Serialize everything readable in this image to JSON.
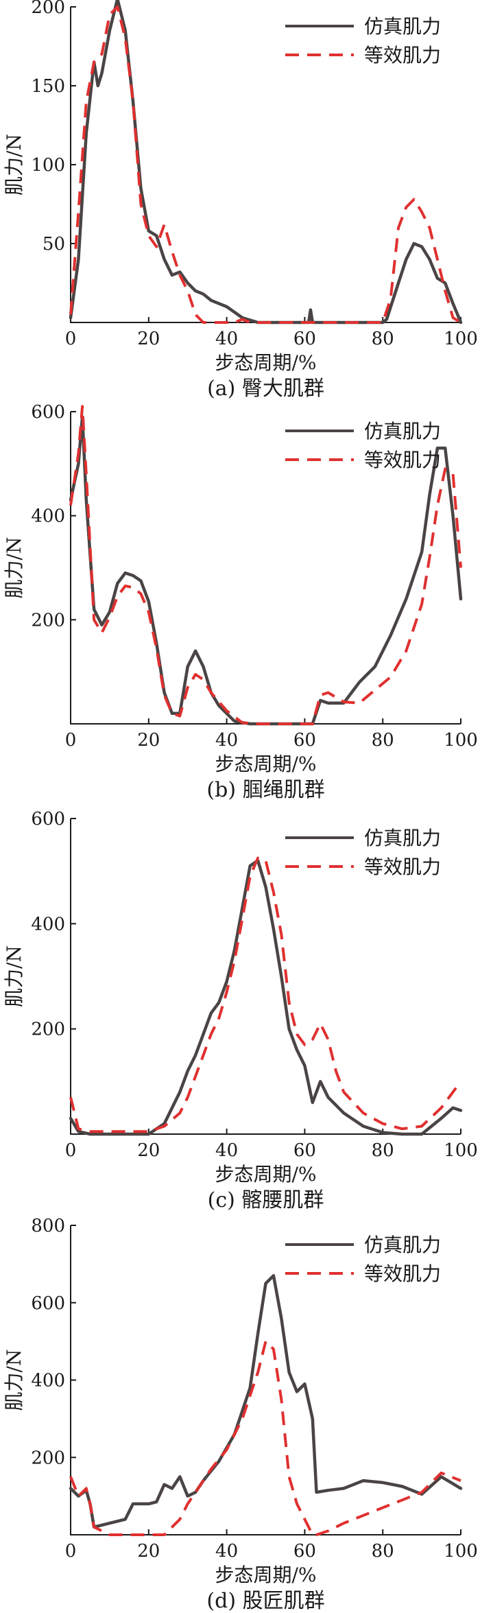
{
  "colors": {
    "sim": "#4a4444",
    "eq": "#e03030"
  },
  "chart_data": [
    {
      "type": "line",
      "caption": "(a)  臀大肌群",
      "xlabel": "步态周期/%",
      "ylabel": "肌力/N",
      "xlim": [
        0,
        100
      ],
      "ylim": [
        0,
        200
      ],
      "xticks": [
        "0",
        "20",
        "40",
        "60",
        "80",
        "100"
      ],
      "yticks": [
        50,
        100,
        150,
        200
      ],
      "ytick_labels": [
        "50",
        "100",
        "150",
        "200"
      ],
      "legend_position": "top-right",
      "series": [
        {
          "name": "仿真肌力",
          "style": "solid",
          "x": [
            0,
            2,
            4,
            6,
            7,
            8,
            10,
            12,
            14,
            16,
            18,
            20,
            22,
            24,
            26,
            28,
            30,
            32,
            34,
            36,
            40,
            44,
            48,
            60,
            61,
            61.5,
            62,
            64,
            80,
            81,
            84,
            86,
            88,
            90,
            92,
            94,
            96,
            98,
            100
          ],
          "y": [
            3,
            40,
            120,
            165,
            150,
            158,
            185,
            205,
            185,
            140,
            85,
            58,
            55,
            40,
            30,
            32,
            25,
            20,
            18,
            14,
            10,
            3,
            0,
            0,
            0,
            8,
            0,
            0,
            0,
            2,
            25,
            40,
            50,
            48,
            40,
            28,
            25,
            12,
            0
          ]
        },
        {
          "name": "等效肌力",
          "style": "dashed",
          "x": [
            0,
            2,
            4,
            6,
            8,
            10,
            12,
            14,
            16,
            18,
            20,
            22,
            24,
            26,
            28,
            30,
            32,
            34,
            38,
            42,
            44,
            46,
            50,
            60,
            70,
            80,
            82,
            84,
            86,
            88,
            90,
            92,
            94,
            96,
            98,
            100
          ],
          "y": [
            5,
            70,
            140,
            165,
            170,
            195,
            200,
            180,
            140,
            75,
            55,
            48,
            62,
            45,
            30,
            20,
            5,
            0,
            0,
            0,
            2,
            0,
            0,
            0,
            0,
            0,
            15,
            60,
            73,
            78,
            70,
            60,
            40,
            20,
            3,
            0
          ]
        }
      ]
    },
    {
      "type": "line",
      "caption": "(b)  腘绳肌群",
      "xlabel": "步态周期/%",
      "ylabel": "肌力/N",
      "xlim": [
        0,
        100
      ],
      "ylim": [
        0,
        600
      ],
      "xticks": [
        "0",
        "20",
        "40",
        "60",
        "80",
        "100"
      ],
      "yticks": [
        200,
        400,
        600
      ],
      "ytick_labels": [
        "200",
        "400",
        "600"
      ],
      "legend_position": "top-right",
      "series": [
        {
          "name": "仿真肌力",
          "style": "solid",
          "x": [
            0,
            2,
            3,
            4,
            6,
            8,
            10,
            12,
            14,
            16,
            18,
            20,
            22,
            24,
            26,
            28,
            30,
            32,
            34,
            36,
            38,
            42,
            46,
            50,
            54,
            58,
            62,
            64,
            66,
            70,
            74,
            78,
            82,
            86,
            90,
            92,
            94,
            96,
            98,
            100
          ],
          "y": [
            430,
            500,
            590,
            430,
            220,
            190,
            215,
            270,
            290,
            285,
            275,
            235,
            155,
            60,
            20,
            20,
            110,
            140,
            110,
            60,
            35,
            5,
            0,
            0,
            0,
            0,
            0,
            45,
            40,
            40,
            80,
            110,
            170,
            240,
            330,
            440,
            530,
            530,
            400,
            240
          ]
        },
        {
          "name": "等效肌力",
          "style": "dashed",
          "x": [
            0,
            2,
            3,
            4,
            6,
            8,
            10,
            12,
            14,
            16,
            18,
            20,
            22,
            24,
            26,
            28,
            30,
            32,
            34,
            36,
            40,
            44,
            48,
            54,
            58,
            62,
            64,
            66,
            70,
            74,
            78,
            82,
            86,
            90,
            92,
            94,
            96,
            98,
            100
          ],
          "y": [
            420,
            520,
            610,
            480,
            200,
            175,
            205,
            245,
            265,
            262,
            250,
            215,
            145,
            55,
            20,
            15,
            70,
            95,
            85,
            60,
            25,
            2,
            0,
            0,
            0,
            0,
            55,
            60,
            42,
            40,
            65,
            90,
            140,
            230,
            320,
            420,
            490,
            480,
            300
          ]
        }
      ]
    },
    {
      "type": "line",
      "caption": "(c)  髂腰肌群",
      "xlabel": "步态周期/%",
      "ylabel": "肌力/N",
      "xlim": [
        0,
        100
      ],
      "ylim": [
        0,
        600
      ],
      "xticks": [
        "0",
        "20",
        "40",
        "60",
        "80",
        "100"
      ],
      "yticks": [
        200,
        400,
        600
      ],
      "ytick_labels": [
        "200",
        "400",
        "600"
      ],
      "legend_position": "top-right",
      "series": [
        {
          "name": "仿真肌力",
          "style": "solid",
          "x": [
            0,
            2,
            5,
            10,
            15,
            20,
            24,
            28,
            30,
            32,
            34,
            36,
            38,
            40,
            42,
            44,
            46,
            48,
            50,
            52,
            54,
            56,
            58,
            60,
            62,
            64,
            66,
            70,
            75,
            80,
            85,
            90,
            95,
            98,
            100
          ],
          "y": [
            30,
            5,
            0,
            0,
            0,
            0,
            20,
            80,
            120,
            150,
            190,
            230,
            250,
            290,
            350,
            430,
            510,
            520,
            470,
            390,
            300,
            200,
            160,
            130,
            60,
            100,
            70,
            40,
            15,
            3,
            0,
            0,
            30,
            50,
            45
          ]
        },
        {
          "name": "等效肌力",
          "style": "dashed",
          "x": [
            0,
            2,
            5,
            10,
            15,
            20,
            24,
            28,
            30,
            32,
            34,
            36,
            38,
            40,
            42,
            44,
            46,
            48,
            50,
            52,
            54,
            56,
            58,
            60,
            62,
            64,
            66,
            68,
            70,
            75,
            80,
            85,
            90,
            95,
            100
          ],
          "y": [
            70,
            10,
            5,
            5,
            5,
            5,
            15,
            40,
            70,
            110,
            150,
            190,
            220,
            270,
            330,
            410,
            490,
            525,
            520,
            460,
            380,
            250,
            190,
            170,
            180,
            210,
            180,
            120,
            80,
            40,
            20,
            10,
            15,
            50,
            100
          ]
        }
      ]
    },
    {
      "type": "line",
      "caption": "(d)  股匠肌群",
      "xlabel": "步态周期/%",
      "ylabel": "肌力/N",
      "xlim": [
        0,
        100
      ],
      "ylim": [
        0,
        800
      ],
      "xticks": [
        "0",
        "20",
        "40",
        "60",
        "80",
        "100"
      ],
      "yticks": [
        200,
        400,
        600,
        800
      ],
      "ytick_labels": [
        "200",
        "400",
        "600",
        "800"
      ],
      "legend_position": "top-right",
      "series": [
        {
          "name": "仿真肌力",
          "style": "solid",
          "x": [
            0,
            2,
            4,
            5,
            6,
            8,
            10,
            14,
            16,
            18,
            20,
            22,
            24,
            26,
            28,
            30,
            32,
            34,
            38,
            42,
            46,
            48,
            50,
            52,
            54,
            56,
            58,
            60,
            62,
            63,
            66,
            70,
            75,
            80,
            85,
            90,
            95,
            100
          ],
          "y": [
            120,
            100,
            115,
            80,
            20,
            25,
            30,
            40,
            80,
            80,
            80,
            85,
            130,
            120,
            150,
            100,
            110,
            140,
            190,
            260,
            380,
            520,
            650,
            670,
            560,
            420,
            370,
            390,
            300,
            110,
            115,
            120,
            140,
            135,
            125,
            105,
            150,
            120
          ]
        },
        {
          "name": "等效肌力",
          "style": "dashed",
          "x": [
            0,
            2,
            4,
            5,
            6,
            10,
            14,
            20,
            24,
            28,
            30,
            32,
            36,
            40,
            44,
            46,
            48,
            50,
            52,
            54,
            56,
            58,
            60,
            62,
            63,
            66,
            70,
            75,
            80,
            85,
            90,
            95,
            100
          ],
          "y": [
            150,
            100,
            120,
            80,
            20,
            0,
            0,
            0,
            0,
            40,
            80,
            110,
            170,
            220,
            300,
            360,
            420,
            500,
            480,
            350,
            150,
            80,
            40,
            0,
            0,
            10,
            30,
            50,
            70,
            90,
            110,
            160,
            140
          ]
        }
      ]
    }
  ]
}
